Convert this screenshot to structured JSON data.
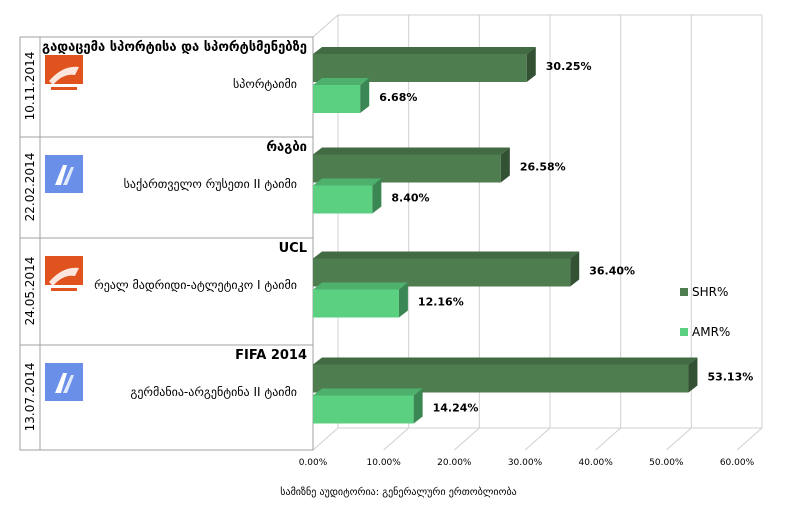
{
  "chart_data": {
    "type": "bar",
    "orientation": "horizontal",
    "categories": [
      {
        "date": "10.11.2014",
        "title": "გადაცემა სპორტისა და სპორტსმენებზე",
        "subtitle": "სპორტაიმი",
        "logo": "broadcaster-logo-orange"
      },
      {
        "date": "22.02.2014",
        "title": "რაგბი",
        "subtitle": "საქართველო  რუსეთი II ტაიმი",
        "logo": "broadcaster-logo-blue"
      },
      {
        "date": "24.05.2014",
        "title": "UCL",
        "subtitle": "რეალ მადრიდი-ატლეტიკო  I ტაიმი",
        "logo": "broadcaster-logo-orange"
      },
      {
        "date": "13.07.2014",
        "title": "FIFA 2014",
        "subtitle": "გერმანია-არგენტინა  II ტაიმი",
        "logo": "broadcaster-logo-blue"
      }
    ],
    "series": [
      {
        "name": "SHR%",
        "color": "#4e7d4f",
        "values": [
          30.25,
          26.58,
          36.4,
          53.13
        ],
        "labels": [
          "30.25%",
          "26.58%",
          "36.40%",
          "53.13%"
        ]
      },
      {
        "name": "AMR%",
        "color": "#5bd080",
        "values": [
          6.68,
          8.4,
          12.16,
          14.24
        ],
        "labels": [
          "6.68%",
          "8.40%",
          "12.16%",
          "14.24%"
        ]
      }
    ],
    "xlim": [
      0,
      60
    ],
    "xticks": [
      "0.00%",
      "10.00%",
      "20.00%",
      "30.00%",
      "40.00%",
      "50.00%",
      "60.00%"
    ],
    "grid": true,
    "legend_position": "right",
    "caption": "სამიზნე აუდიტორია: გენერალური ერთობლიობა"
  }
}
